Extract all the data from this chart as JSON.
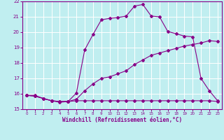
{
  "xlabel": "Windchill (Refroidissement éolien,°C)",
  "ylabel": "",
  "xlim": [
    -0.5,
    23.5
  ],
  "ylim": [
    15,
    22
  ],
  "yticks": [
    15,
    16,
    17,
    18,
    19,
    20,
    21,
    22
  ],
  "xticks": [
    0,
    1,
    2,
    3,
    4,
    5,
    6,
    7,
    8,
    9,
    10,
    11,
    12,
    13,
    14,
    15,
    16,
    17,
    18,
    19,
    20,
    21,
    22,
    23
  ],
  "bg_color": "#c0eef0",
  "line_color": "#880088",
  "grid_color": "#ffffff",
  "line1_x": [
    0,
    1,
    2,
    3,
    4,
    5,
    6,
    7,
    8,
    9,
    10,
    11,
    12,
    13,
    14,
    15,
    16,
    17,
    18,
    19,
    20,
    21,
    22,
    23
  ],
  "line1_y": [
    15.9,
    15.9,
    15.7,
    15.55,
    15.5,
    15.5,
    15.55,
    15.55,
    15.55,
    15.55,
    15.55,
    15.55,
    15.55,
    15.55,
    15.55,
    15.55,
    15.55,
    15.55,
    15.55,
    15.55,
    15.55,
    15.55,
    15.55,
    15.5
  ],
  "line2_x": [
    0,
    1,
    2,
    3,
    4,
    5,
    6,
    7,
    8,
    9,
    10,
    11,
    12,
    13,
    14,
    15,
    16,
    17,
    18,
    19,
    20,
    21,
    22,
    23
  ],
  "line2_y": [
    15.9,
    15.85,
    15.7,
    15.55,
    15.5,
    15.5,
    15.65,
    16.2,
    16.65,
    17.0,
    17.1,
    17.3,
    17.5,
    17.9,
    18.2,
    18.5,
    18.65,
    18.8,
    18.95,
    19.1,
    19.2,
    19.3,
    19.45,
    19.4
  ],
  "line3_x": [
    0,
    1,
    2,
    3,
    4,
    5,
    6,
    7,
    8,
    9,
    10,
    11,
    12,
    13,
    14,
    15,
    16,
    17,
    18,
    19,
    20,
    21,
    22,
    23
  ],
  "line3_y": [
    15.9,
    15.85,
    15.7,
    15.55,
    15.45,
    15.5,
    16.05,
    18.85,
    19.85,
    20.8,
    20.9,
    20.95,
    21.05,
    21.7,
    21.8,
    21.05,
    21.0,
    20.05,
    19.9,
    19.75,
    19.7,
    17.0,
    16.2,
    15.55
  ]
}
